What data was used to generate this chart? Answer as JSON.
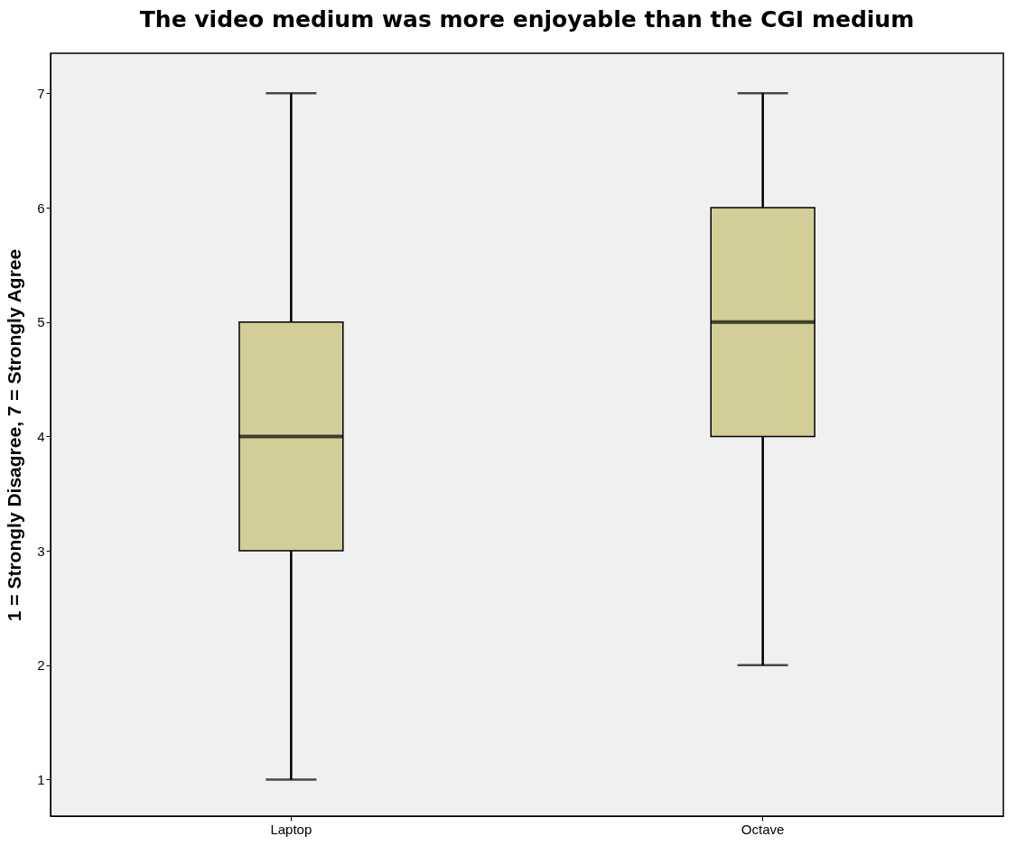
{
  "chart_data": {
    "type": "box",
    "title": "The video medium was more enjoyable than the CGI medium",
    "ylabel": "1 = Strongly Disagree, 7 = Strongly Agree",
    "categories": [
      "Laptop",
      "Octave"
    ],
    "boxes": [
      {
        "low": 1,
        "q1": 3,
        "median": 4,
        "q3": 5,
        "high": 7
      },
      {
        "low": 2,
        "q1": 4,
        "median": 5,
        "q3": 6,
        "high": 7
      }
    ],
    "color": "#d3ce97",
    "ylim": [
      0.68,
      7.35
    ],
    "yticks": [
      1,
      2,
      3,
      4,
      5,
      6,
      7
    ],
    "grid": false
  }
}
